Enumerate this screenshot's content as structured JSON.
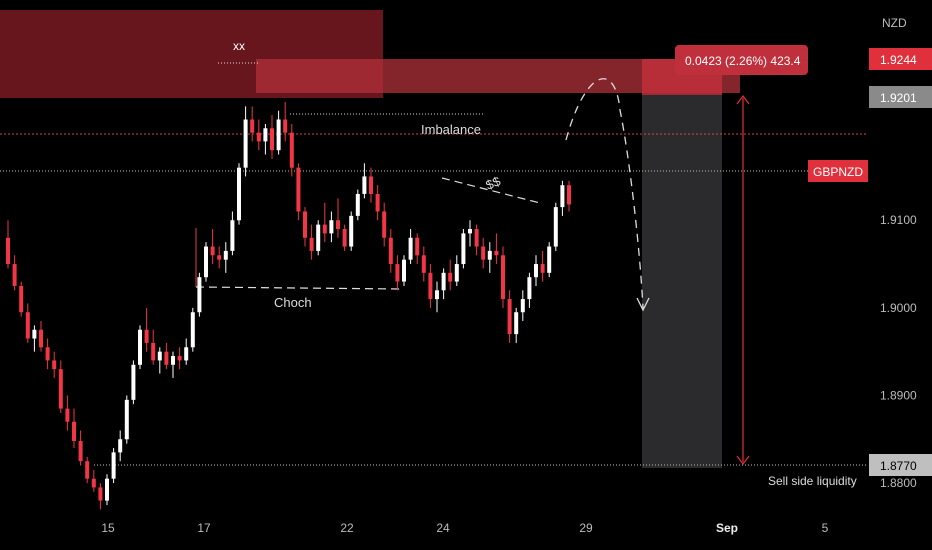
{
  "chart_data": {
    "type": "candlestick",
    "symbol": "GBPNZD",
    "currency": "NZD",
    "ylim": [
      1.8735,
      1.934
    ],
    "y_ticks": [
      1.91,
      1.9,
      1.89,
      1.88
    ],
    "x_ticks": [
      "15",
      "17",
      "22",
      "24",
      "29",
      "Sep",
      "5"
    ],
    "price_labels": {
      "upper": "1.9244",
      "mid": "1.9201",
      "current_symbol": "GBPNZD",
      "lower": "1.8770"
    },
    "measure_label": "0.0423 (2.26%) 423.4",
    "annotations": {
      "double_top": "xx",
      "imbalance": "Imbalance",
      "choch": "Choch",
      "liquidity": "$$",
      "sell_side": "Sell side liquidity"
    },
    "candles": [
      [
        1.908,
        1.91,
        1.9045,
        1.905
      ],
      [
        1.905,
        1.906,
        1.902,
        1.9025
      ],
      [
        1.9025,
        1.903,
        1.899,
        1.8995
      ],
      [
        1.8995,
        1.9005,
        1.896,
        1.8965
      ],
      [
        1.8965,
        1.898,
        1.895,
        1.8975
      ],
      [
        1.8975,
        1.8985,
        1.895,
        1.8955
      ],
      [
        1.8955,
        1.8965,
        1.893,
        1.894
      ],
      [
        1.894,
        1.895,
        1.892,
        1.893
      ],
      [
        1.893,
        1.894,
        1.888,
        1.8885
      ],
      [
        1.8885,
        1.89,
        1.886,
        1.887
      ],
      [
        1.887,
        1.8885,
        1.884,
        1.8848
      ],
      [
        1.8848,
        1.886,
        1.882,
        1.8825
      ],
      [
        1.8825,
        1.883,
        1.88,
        1.8805
      ],
      [
        1.8805,
        1.8815,
        1.879,
        1.8795
      ],
      [
        1.8795,
        1.88,
        1.877,
        1.878
      ],
      [
        1.878,
        1.881,
        1.8775,
        1.8805
      ],
      [
        1.8805,
        1.884,
        1.88,
        1.8835
      ],
      [
        1.8835,
        1.886,
        1.8825,
        1.885
      ],
      [
        1.885,
        1.89,
        1.8845,
        1.8895
      ],
      [
        1.8895,
        1.894,
        1.889,
        1.8935
      ],
      [
        1.8935,
        1.898,
        1.893,
        1.8975
      ],
      [
        1.8975,
        1.9,
        1.895,
        1.896
      ],
      [
        1.896,
        1.8975,
        1.8935,
        1.894
      ],
      [
        1.894,
        1.8955,
        1.8925,
        1.895
      ],
      [
        1.895,
        1.896,
        1.893,
        1.8935
      ],
      [
        1.8935,
        1.895,
        1.892,
        1.8945
      ],
      [
        1.8945,
        1.8955,
        1.893,
        1.894
      ],
      [
        1.894,
        1.8965,
        1.8935,
        1.8955
      ],
      [
        1.8955,
        1.9,
        1.895,
        1.8995
      ],
      [
        1.8995,
        1.904,
        1.899,
        1.9035
      ],
      [
        1.9035,
        1.9075,
        1.903,
        1.907
      ],
      [
        1.907,
        1.909,
        1.905,
        1.906
      ],
      [
        1.906,
        1.907,
        1.9045,
        1.9055
      ],
      [
        1.9055,
        1.9075,
        1.904,
        1.9065
      ],
      [
        1.9065,
        1.911,
        1.906,
        1.91
      ],
      [
        1.91,
        1.9165,
        1.9095,
        1.916
      ],
      [
        1.916,
        1.923,
        1.915,
        1.9215
      ],
      [
        1.9215,
        1.923,
        1.919,
        1.92
      ],
      [
        1.92,
        1.9215,
        1.918,
        1.919
      ],
      [
        1.919,
        1.921,
        1.9175,
        1.9205
      ],
      [
        1.9205,
        1.922,
        1.917,
        1.918
      ],
      [
        1.918,
        1.9225,
        1.9175,
        1.9215
      ],
      [
        1.9215,
        1.9235,
        1.919,
        1.92
      ],
      [
        1.92,
        1.921,
        1.915,
        1.916
      ],
      [
        1.916,
        1.9165,
        1.91,
        1.911
      ],
      [
        1.911,
        1.9115,
        1.907,
        1.908
      ],
      [
        1.908,
        1.9095,
        1.9055,
        1.9065
      ],
      [
        1.9065,
        1.91,
        1.906,
        1.9095
      ],
      [
        1.9095,
        1.912,
        1.9075,
        1.9085
      ],
      [
        1.9085,
        1.911,
        1.9075,
        1.91
      ],
      [
        1.91,
        1.9125,
        1.908,
        1.909
      ],
      [
        1.909,
        1.9095,
        1.9065,
        1.907
      ],
      [
        1.907,
        1.911,
        1.9065,
        1.9105
      ],
      [
        1.9105,
        1.9135,
        1.91,
        1.913
      ],
      [
        1.913,
        1.9165,
        1.9125,
        1.915
      ],
      [
        1.915,
        1.916,
        1.912,
        1.913
      ],
      [
        1.913,
        1.914,
        1.91,
        1.911
      ],
      [
        1.911,
        1.912,
        1.907,
        1.908
      ],
      [
        1.908,
        1.909,
        1.904,
        1.905
      ],
      [
        1.905,
        1.906,
        1.902,
        1.903
      ],
      [
        1.903,
        1.906,
        1.9025,
        1.9055
      ],
      [
        1.9055,
        1.909,
        1.905,
        1.908
      ],
      [
        1.908,
        1.9085,
        1.905,
        1.906
      ],
      [
        1.906,
        1.907,
        1.903,
        1.904
      ],
      [
        1.904,
        1.905,
        1.9,
        1.901
      ],
      [
        1.901,
        1.903,
        1.8995,
        1.902
      ],
      [
        1.902,
        1.9045,
        1.901,
        1.904
      ],
      [
        1.904,
        1.9055,
        1.902,
        1.903
      ],
      [
        1.903,
        1.906,
        1.9025,
        1.905
      ],
      [
        1.905,
        1.909,
        1.9045,
        1.9085
      ],
      [
        1.9085,
        1.91,
        1.907,
        1.909
      ],
      [
        1.909,
        1.9095,
        1.906,
        1.907
      ],
      [
        1.907,
        1.908,
        1.9045,
        1.9055
      ],
      [
        1.9055,
        1.9075,
        1.904,
        1.9065
      ],
      [
        1.9065,
        1.9085,
        1.905,
        1.906
      ],
      [
        1.906,
        1.907,
        1.9,
        1.901
      ],
      [
        1.901,
        1.902,
        1.896,
        1.897
      ],
      [
        1.897,
        1.9,
        1.896,
        1.8995
      ],
      [
        1.8995,
        1.902,
        1.8985,
        1.901
      ],
      [
        1.901,
        1.904,
        1.9,
        1.9035
      ],
      [
        1.9035,
        1.906,
        1.9025,
        1.905
      ],
      [
        1.905,
        1.9065,
        1.903,
        1.904
      ],
      [
        1.904,
        1.9075,
        1.9035,
        1.907
      ],
      [
        1.907,
        1.912,
        1.9065,
        1.9115
      ],
      [
        1.9115,
        1.9145,
        1.9105,
        1.914
      ],
      [
        1.914,
        1.9145,
        1.911,
        1.9118
      ]
    ]
  }
}
